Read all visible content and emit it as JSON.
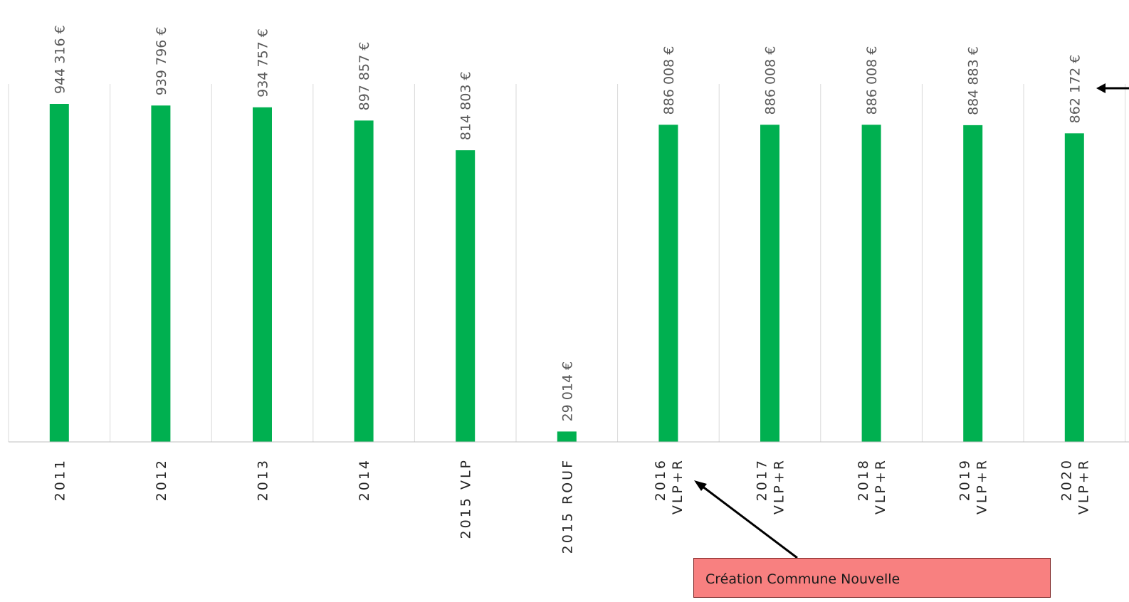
{
  "chart_data": {
    "type": "bar",
    "categories": [
      [
        "2011"
      ],
      [
        "2012"
      ],
      [
        "2013"
      ],
      [
        "2014"
      ],
      [
        "2015 VLP"
      ],
      [
        "2015 ROUF"
      ],
      [
        "2016",
        "VLP+R"
      ],
      [
        "2017",
        "VLP+R"
      ],
      [
        "2018",
        "VLP+R"
      ],
      [
        "2019",
        "VLP+R"
      ],
      [
        "2020",
        "VLP+R"
      ]
    ],
    "values": [
      944316,
      939796,
      934757,
      897857,
      814803,
      29014,
      886008,
      886008,
      886008,
      884883,
      862172
    ],
    "data_labels": [
      "944 316 €",
      "939 796 €",
      "934 757 €",
      "897 857 €",
      "814 803 €",
      "29 014 €",
      "886 008 €",
      "886 008 €",
      "886 008 €",
      "884 883 €",
      "862 172 €"
    ],
    "ylim": [
      0,
      1000000
    ],
    "colors": {
      "bar": "#00b050",
      "grid": "#d9d9d9",
      "axis": "#bfbfbf",
      "label": "#595959",
      "category_label": "#262626"
    }
  },
  "annotation": {
    "text": "Création Commune Nouvelle",
    "background": "#f88080"
  }
}
